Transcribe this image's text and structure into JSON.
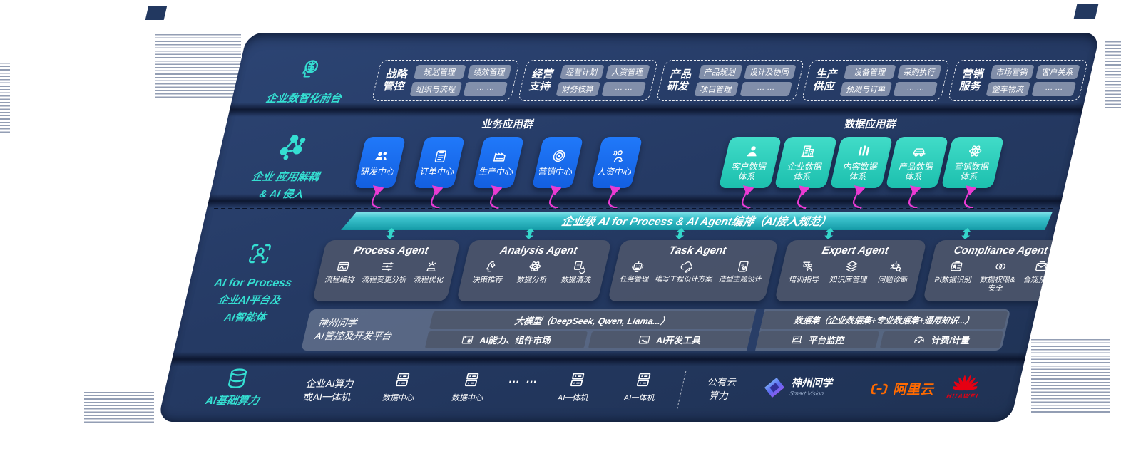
{
  "colors": {
    "panel_navy": "#253a64",
    "accent_teal": "#35dfd2",
    "app_blue": "#1a6ef0",
    "data_teal": "#2fd3c0",
    "magenta": "#ea3bd3",
    "banner_teal": "#1fa9b3",
    "alicloud_orange": "#ff6a00",
    "huawei_red": "#e60012"
  },
  "front_office": {
    "label": "企业数智化前台",
    "icon": "brain-head-icon",
    "groups": [
      {
        "name": "战略管控",
        "chips": [
          "规划管理",
          "绩效管理",
          "组织与流程",
          "… …"
        ]
      },
      {
        "name": "经营支持",
        "chips": [
          "经营计划",
          "人资管理",
          "财务核算",
          "… …"
        ]
      },
      {
        "name": "产品研发",
        "chips": [
          "产品规划",
          "设计及协同",
          "项目管理",
          "… …"
        ]
      },
      {
        "name": "生产供应",
        "chips": [
          "设备管理",
          "采购执行",
          "预测与订单",
          "… …"
        ]
      },
      {
        "name": "营销服务",
        "chips": [
          "市场营销",
          "客户关系",
          "整车物流",
          "… …"
        ]
      }
    ]
  },
  "decouple": {
    "label_line1": "企业 应用解耦",
    "label_line2": "& AI 侵入",
    "icon": "molecule-icon",
    "business_header": "业务应用群",
    "data_header": "数据应用群",
    "business_apps": [
      {
        "label": "研发中心",
        "icon": "team-icon"
      },
      {
        "label": "订单中心",
        "icon": "clipboard-icon"
      },
      {
        "label": "生产中心",
        "icon": "factory-icon"
      },
      {
        "label": "营销中心",
        "icon": "target-icon"
      },
      {
        "label": "人资中心",
        "icon": "people-wave-icon"
      }
    ],
    "data_apps": [
      {
        "label": "客户数据体系",
        "icon": "person-icon"
      },
      {
        "label": "企业数据体系",
        "icon": "building-icon"
      },
      {
        "label": "内容数据体系",
        "icon": "columns-icon"
      },
      {
        "label": "产品数据体系",
        "icon": "car-icon"
      },
      {
        "label": "营销数据体系",
        "icon": "atom-icon"
      }
    ]
  },
  "banner": {
    "label": "企业级 AI for Process & AI Agent编排（AI接入规范）"
  },
  "ai_platform": {
    "label_line1": "AI for Process",
    "label_line2": "企业AI平台及",
    "label_line3": "AI智能体",
    "icon": "person-focus-icon",
    "agents": [
      {
        "title": "Process Agent",
        "items": [
          {
            "label": "流程编排",
            "icon": "flow-icon"
          },
          {
            "label": "流程变更分析",
            "icon": "sliders-icon"
          },
          {
            "label": "流程优化",
            "icon": "optimize-icon"
          }
        ]
      },
      {
        "title": "Analysis Agent",
        "items": [
          {
            "label": "决策推荐",
            "icon": "decision-icon"
          },
          {
            "label": "数据分析",
            "icon": "atom-icon"
          },
          {
            "label": "数据清洗",
            "icon": "clean-icon"
          }
        ]
      },
      {
        "title": "Task Agent",
        "items": [
          {
            "label": "任务管理",
            "icon": "robot-icon"
          },
          {
            "label": "编写工程设计方案",
            "icon": "cloud-edit-icon"
          },
          {
            "label": "造型主题设计",
            "icon": "tablet-check-icon"
          }
        ]
      },
      {
        "title": "Expert Agent",
        "items": [
          {
            "label": "培训指导",
            "icon": "training-icon"
          },
          {
            "label": "知识库管理",
            "icon": "layers-icon"
          },
          {
            "label": "问题诊断",
            "icon": "diagnose-icon"
          }
        ]
      },
      {
        "title": "Compliance Agent",
        "items": [
          {
            "label": "PI数据识别",
            "icon": "id-card-icon"
          },
          {
            "label": "数据权限&安全",
            "icon": "shield-link-icon"
          },
          {
            "label": "合规预警",
            "icon": "mail-alert-icon"
          }
        ]
      }
    ],
    "platform": {
      "name_line1": "神州问学",
      "name_line2": "AI管控及开发平台",
      "model_bar": "大模型（DeepSeek, Qwen, Llama...）",
      "dataset_bar": "数据集（企业数据集+专业数据集+通用知识...）",
      "cells": [
        {
          "label": "AI能力、组件市场",
          "icon": "window-gear-icon"
        },
        {
          "label": "AI开发工具",
          "icon": "window-tool-icon"
        },
        {
          "label": "平台监控",
          "icon": "monitor-icon"
        },
        {
          "label": "计费/计量",
          "icon": "gauge-icon"
        }
      ]
    }
  },
  "infra": {
    "label": "AI基础算力",
    "icon": "database-icon",
    "enterprise_line1": "企业AI算力",
    "enterprise_line2": "或AI一体机",
    "nodes": [
      {
        "label": "数据中心",
        "icon": "server-icon"
      },
      {
        "label": "数据中心",
        "icon": "server-icon"
      },
      {
        "label": "… …",
        "icon": "dots"
      },
      {
        "label": "AI一体机",
        "icon": "server-icon"
      },
      {
        "label": "AI一体机",
        "icon": "server-icon"
      }
    ],
    "public_cloud_line1": "公有云",
    "public_cloud_line2": "算力",
    "vendors": [
      {
        "name": "神州问学",
        "sub": "Smart Vision",
        "icon": "smartvision-logo"
      },
      {
        "name": "阿里云",
        "icon": "alicloud-logo"
      },
      {
        "name": "HUAWEI",
        "icon": "huawei-logo"
      }
    ]
  }
}
